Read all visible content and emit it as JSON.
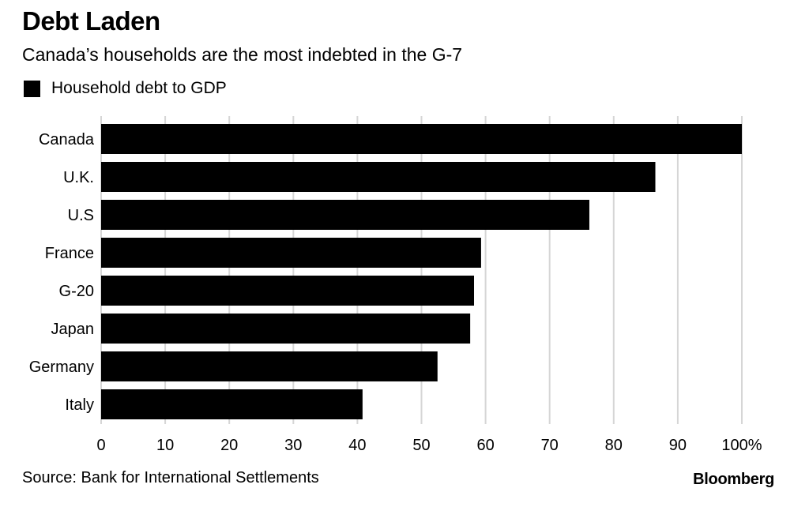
{
  "header": {
    "title": "Debt Laden",
    "subtitle": "Canada’s households are the most indebted in the G-7"
  },
  "legend": {
    "label": "Household debt to GDP",
    "color": "#000000"
  },
  "footer": {
    "source": "Source: Bank for International Settlements",
    "brand": "Bloomberg"
  },
  "chart_data": {
    "type": "bar",
    "orientation": "horizontal",
    "categories": [
      "Canada",
      "U.K.",
      "U.S",
      "France",
      "G-20",
      "Japan",
      "Germany",
      "Italy"
    ],
    "series": [
      {
        "name": "Household debt to GDP",
        "values": [
          100,
          86.5,
          76.2,
          59.3,
          58.2,
          57.6,
          52.5,
          40.8
        ],
        "color": "#000000"
      }
    ],
    "xlim": [
      0,
      100
    ],
    "xticks": [
      "0",
      "10",
      "20",
      "30",
      "40",
      "50",
      "60",
      "70",
      "80",
      "90",
      "100%"
    ],
    "grid": true,
    "gridColor": "#d6d6d6"
  }
}
